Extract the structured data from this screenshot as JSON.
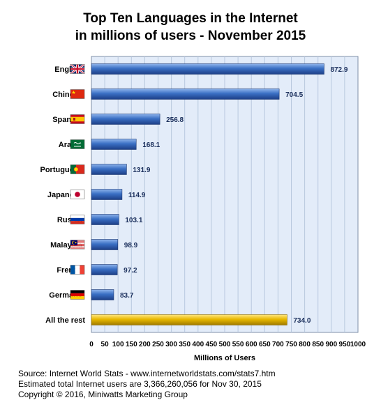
{
  "chart_data": {
    "type": "bar",
    "orientation": "horizontal",
    "title": "Top Ten Languages in the Internet",
    "subtitle": "in millions of users - November 2015",
    "xlabel": "Millions of Users",
    "ylabel": "",
    "xlim": [
      0,
      1000
    ],
    "x_ticks": [
      0,
      50,
      100,
      150,
      200,
      250,
      300,
      350,
      400,
      450,
      500,
      550,
      600,
      650,
      700,
      750,
      800,
      850,
      900,
      950,
      1000
    ],
    "grid": true,
    "categories": [
      "English",
      "Chinese",
      "Spanish",
      "Arabic",
      "Portuguese",
      "Japanese",
      "Russia",
      "Malaysia",
      "French",
      "Germany",
      "All the rest"
    ],
    "values": [
      872.9,
      704.5,
      256.8,
      168.1,
      131.9,
      114.9,
      103.1,
      98.9,
      97.2,
      83.7,
      734.0
    ],
    "value_labels": [
      "872.9",
      "704.5",
      "256.8",
      "168.1",
      "131.9",
      "114.9",
      "103.1",
      "98.9",
      "97.2",
      "83.7",
      "734.0"
    ],
    "flags": [
      "uk-flag-icon",
      "china-flag-icon",
      "spain-flag-icon",
      "saudi-arabia-flag-icon",
      "portugal-flag-icon",
      "japan-flag-icon",
      "russia-flag-icon",
      "malaysia-flag-icon",
      "france-flag-icon",
      "germany-flag-icon",
      ""
    ],
    "colors": {
      "bar": "#3a6fc4",
      "bar_highlight": "#e8b800",
      "plot_bg": "#e3ecf9",
      "grid": "#b8c8de"
    }
  },
  "footer": {
    "line1": "Source: Internet World Stats - www.internetworldstats.com/stats7.htm",
    "line2": "Estimated total Internet users are 3,366,260,056 for Nov 30, 2015",
    "line3": "Copyright ©  2016, Miniwatts Marketing Group"
  }
}
